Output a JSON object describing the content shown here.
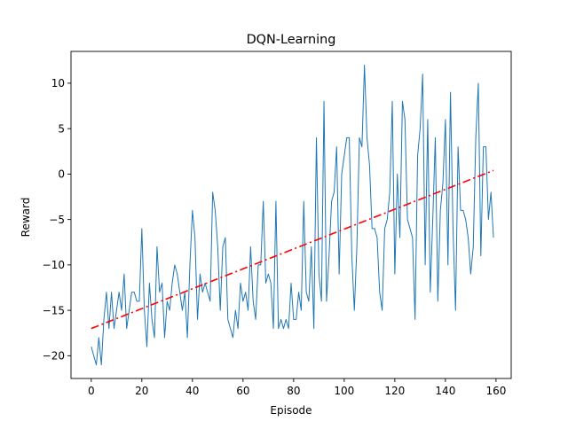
{
  "chart_data": {
    "type": "line",
    "title": "DQN-Learning",
    "xlabel": "Episode",
    "ylabel": "Reward",
    "xlim": [
      -8,
      166
    ],
    "ylim": [
      -22.5,
      13.5
    ],
    "xticks": [
      0,
      20,
      40,
      60,
      80,
      100,
      120,
      140,
      160
    ],
    "yticks": [
      -20,
      -15,
      -10,
      -5,
      0,
      5,
      10
    ],
    "xtick_labels": [
      "0",
      "20",
      "40",
      "60",
      "80",
      "100",
      "120",
      "140",
      "160"
    ],
    "ytick_labels": [
      "−20",
      "−15",
      "−10",
      "−5",
      "0",
      "5",
      "10"
    ],
    "grid": false,
    "series": [
      {
        "style": "solid",
        "color": "#1f77b4",
        "x": [
          0,
          1,
          2,
          3,
          4,
          5,
          6,
          7,
          8,
          9,
          10,
          11,
          12,
          13,
          14,
          15,
          16,
          17,
          18,
          19,
          20,
          21,
          22,
          23,
          24,
          25,
          26,
          27,
          28,
          29,
          30,
          31,
          32,
          33,
          34,
          35,
          36,
          37,
          38,
          39,
          40,
          41,
          42,
          43,
          44,
          45,
          46,
          47,
          48,
          49,
          50,
          51,
          52,
          53,
          54,
          55,
          56,
          57,
          58,
          59,
          60,
          61,
          62,
          63,
          64,
          65,
          66,
          67,
          68,
          69,
          70,
          71,
          72,
          73,
          74,
          75,
          76,
          77,
          78,
          79,
          80,
          81,
          82,
          83,
          84,
          85,
          86,
          87,
          88,
          89,
          90,
          91,
          92,
          93,
          94,
          95,
          96,
          97,
          98,
          99,
          100,
          101,
          102,
          103,
          104,
          105,
          106,
          107,
          108,
          109,
          110,
          111,
          112,
          113,
          114,
          115,
          116,
          117,
          118,
          119,
          120,
          121,
          122,
          123,
          124,
          125,
          126,
          127,
          128,
          129,
          130,
          131,
          132,
          133,
          134,
          135,
          136,
          137,
          138,
          139,
          140,
          141,
          142,
          143,
          144,
          145,
          146,
          147,
          148,
          149,
          150,
          151,
          152,
          153,
          154,
          155,
          156,
          157,
          158,
          159
        ],
        "y": [
          -19,
          -20,
          -21,
          -18,
          -21,
          -16,
          -13,
          -17,
          -13,
          -17,
          -15,
          -13,
          -15,
          -11,
          -17,
          -15,
          -13,
          -13,
          -14,
          -14,
          -6,
          -15,
          -19,
          -12,
          -16,
          -18,
          -8,
          -13,
          -12,
          -18,
          -14,
          -15,
          -12,
          -10,
          -11,
          -13,
          -15,
          -13,
          -18,
          -10,
          -4,
          -7,
          -16,
          -11,
          -13,
          -12,
          -13,
          -14,
          -2,
          -4,
          -8,
          -15,
          -8,
          -7,
          -16,
          -17,
          -18,
          -15,
          -17,
          -12,
          -14,
          -13,
          -15,
          -8,
          -14,
          -16,
          -10,
          -10,
          -3,
          -12,
          -11,
          -12,
          -17,
          -3,
          -17,
          -16,
          -17,
          -16,
          -17,
          -12,
          -16,
          -16,
          -13,
          -15,
          -3,
          -13,
          -14,
          -8,
          -17,
          4,
          -11,
          -14,
          8,
          -14,
          -9,
          -3,
          -2,
          3,
          -11,
          0,
          2,
          4,
          4,
          -9,
          -15,
          -8,
          4,
          3,
          12,
          4,
          1,
          -6,
          -6,
          -7,
          -13,
          -15,
          -6,
          -5,
          -2,
          8,
          -11,
          0,
          -7,
          8,
          6,
          -5,
          -6,
          -7,
          -16,
          2,
          5,
          11,
          -10,
          6,
          -13,
          -5,
          4,
          -14,
          -4,
          -1,
          6,
          -10,
          9,
          -6,
          -15,
          3,
          -4,
          -4,
          -5,
          -7,
          -11,
          -8,
          4,
          10,
          -9,
          3,
          3,
          -5,
          -2,
          -7
        ]
      },
      {
        "style": "dashdot",
        "color": "#ff0000",
        "x": [
          0,
          159
        ],
        "y": [
          -17,
          0.4
        ]
      }
    ]
  },
  "colors": {
    "series_line": "#1f77b4",
    "trend_line": "#ff0000",
    "axes": "#000000",
    "background": "#ffffff"
  }
}
